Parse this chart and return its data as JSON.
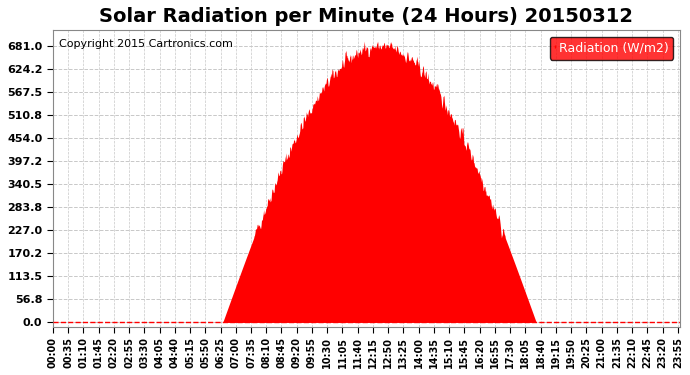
{
  "title": "Solar Radiation per Minute (24 Hours) 20150312",
  "copyright_text": "Copyright 2015 Cartronics.com",
  "legend_label": "Radiation (W/m2)",
  "ytick_labels": [
    "0.0",
    "56.8",
    "113.5",
    "170.2",
    "227.0",
    "283.8",
    "340.5",
    "397.2",
    "454.0",
    "510.8",
    "567.5",
    "624.2",
    "681.0"
  ],
  "ytick_values": [
    0.0,
    56.8,
    113.5,
    170.2,
    227.0,
    283.8,
    340.5,
    397.2,
    454.0,
    510.8,
    567.5,
    624.2,
    681.0
  ],
  "ymax": 720,
  "bar_color": "#FF0000",
  "dashed_line_color": "#FF0000",
  "grid_color": "#C8C8C8",
  "background_color": "#FFFFFF",
  "title_fontsize": 14,
  "copyright_fontsize": 8,
  "tick_fontsize": 8,
  "legend_fontsize": 9,
  "minutes_per_day": 1440,
  "sunrise_minute": 390,
  "sunset_minute": 1110,
  "peak_minute": 750,
  "peak_value": 681.0
}
